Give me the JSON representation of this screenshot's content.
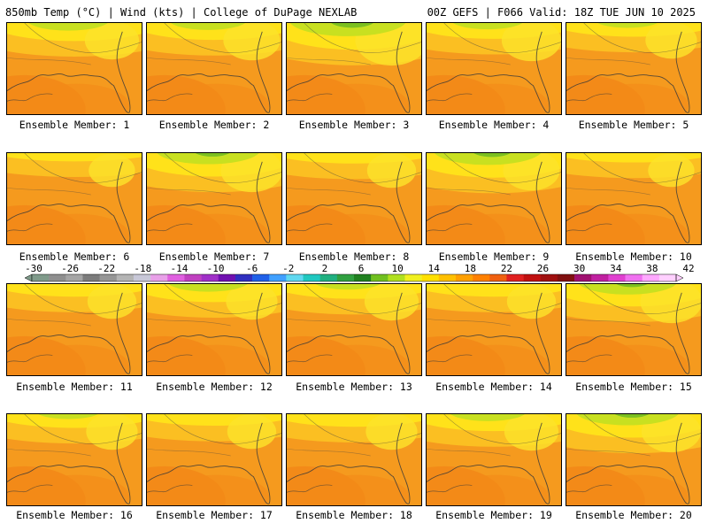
{
  "header": {
    "left": "850mb Temp (°C) | Wind (kts) | College of DuPage NEXLAB",
    "right": "00Z GEFS | F066 Valid: 18Z TUE JUN 10 2025"
  },
  "caption_prefix": "Ensemble Member:",
  "members": [
    {
      "label": "Ensemble Member: 1",
      "north_cool": 0.55,
      "tongue": 0.2
    },
    {
      "label": "Ensemble Member: 2",
      "north_cool": 0.5,
      "tongue": 0.25
    },
    {
      "label": "Ensemble Member: 3",
      "north_cool": 0.95,
      "tongue": 0.55
    },
    {
      "label": "Ensemble Member: 4",
      "north_cool": 0.45,
      "tongue": 0.3
    },
    {
      "label": "Ensemble Member: 5",
      "north_cool": 0.35,
      "tongue": 0.15
    },
    {
      "label": "Ensemble Member: 6",
      "north_cool": 0.1,
      "tongue": 0.05
    },
    {
      "label": "Ensemble Member: 7",
      "north_cool": 0.8,
      "tongue": 0.35
    },
    {
      "label": "Ensemble Member: 8",
      "north_cool": 0.2,
      "tongue": 0.1
    },
    {
      "label": "Ensemble Member: 9",
      "north_cool": 0.85,
      "tongue": 0.25
    },
    {
      "label": "Ensemble Member: 10",
      "north_cool": 0.15,
      "tongue": 0.05
    },
    {
      "label": "Ensemble Member: 11",
      "north_cool": 0.3,
      "tongue": 0.1
    },
    {
      "label": "Ensemble Member: 12",
      "north_cool": 0.55,
      "tongue": 0.15
    },
    {
      "label": "Ensemble Member: 13",
      "north_cool": 0.4,
      "tongue": 0.2
    },
    {
      "label": "Ensemble Member: 14",
      "north_cool": 0.3,
      "tongue": 0.1
    },
    {
      "label": "Ensemble Member: 15",
      "north_cool": 0.75,
      "tongue": 0.35
    },
    {
      "label": "Ensemble Member: 16",
      "north_cool": 0.35,
      "tongue": 0.15
    },
    {
      "label": "Ensemble Member: 17",
      "north_cool": 0.25,
      "tongue": 0.1
    },
    {
      "label": "Ensemble Member: 18",
      "north_cool": 0.3,
      "tongue": 0.15
    },
    {
      "label": "Ensemble Member: 19",
      "north_cool": 0.5,
      "tongue": 0.2
    },
    {
      "label": "Ensemble Member: 20",
      "north_cool": 0.8,
      "tongue": 0.3
    }
  ],
  "colorbar": {
    "labels": [
      "-30",
      "-26",
      "-22",
      "-18",
      "-14",
      "-10",
      "-6",
      "-2",
      "2",
      "6",
      "10",
      "14",
      "18",
      "22",
      "26",
      "30",
      "34",
      "38",
      "42"
    ],
    "colors": [
      "#7f9a8a",
      "#8f8f8f",
      "#a5a5a5",
      "#7c7c7c",
      "#969696",
      "#b4b4b4",
      "#c8c8d8",
      "#e8a0e8",
      "#e060e0",
      "#c040c0",
      "#a030c8",
      "#7010b0",
      "#3030c0",
      "#2060e8",
      "#40a0ff",
      "#60d8f0",
      "#20c8c0",
      "#20b080",
      "#30a040",
      "#208020",
      "#70c020",
      "#b0e020",
      "#f0f020",
      "#ffe000",
      "#ffc000",
      "#ffa000",
      "#ff8000",
      "#f06010",
      "#e02020",
      "#c01010",
      "#a01010",
      "#801010",
      "#a01070",
      "#c020a0",
      "#e040d0",
      "#f070f0",
      "#ffa8ff",
      "#ffd0ff"
    ]
  }
}
